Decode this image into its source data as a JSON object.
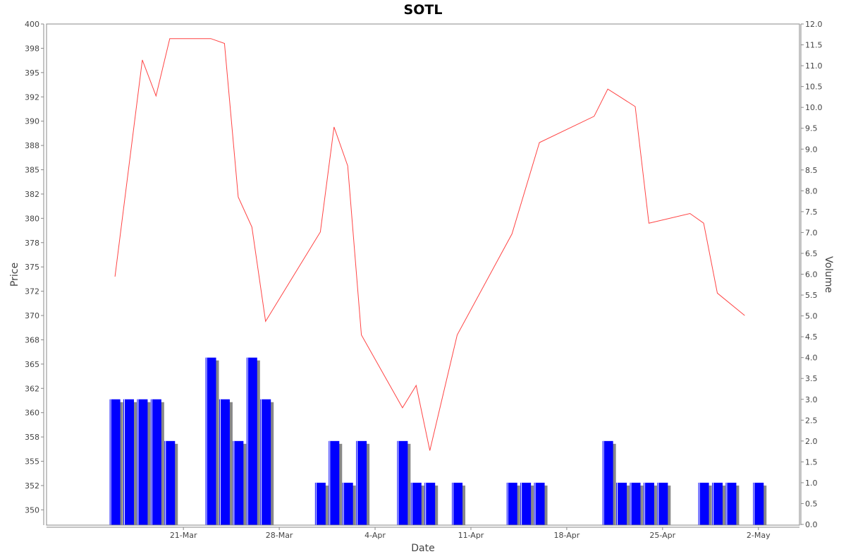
{
  "chart_data": {
    "type": "line+bar",
    "title": "SOTL",
    "xlabel": "Date",
    "ylabel_left": "Price",
    "ylabel_right": "Volume",
    "x_tick_labels": [
      "21-Mar",
      "28-Mar",
      "4-Apr",
      "11-Apr",
      "18-Apr",
      "25-Apr",
      "2-May"
    ],
    "x_tick_days": [
      5,
      12,
      19,
      26,
      33,
      40,
      47
    ],
    "xlim_days": [
      -5,
      50
    ],
    "price_axis": {
      "ylim": [
        348.5,
        400
      ],
      "tick_labels": [
        "350",
        "352",
        "355",
        "358",
        "360",
        "362",
        "365",
        "368",
        "370",
        "372",
        "375",
        "378",
        "380",
        "382",
        "385",
        "388",
        "390",
        "392",
        "395",
        "398",
        "400"
      ],
      "tick_values": [
        350,
        352.5,
        355,
        357.5,
        360,
        362.5,
        365,
        367.5,
        370,
        372.5,
        375,
        377.5,
        380,
        382.5,
        385,
        387.5,
        390,
        392.5,
        395,
        397.5,
        400
      ]
    },
    "volume_axis": {
      "ylim": [
        0,
        12
      ],
      "tick_labels": [
        "0.0",
        "0.5",
        "1.0",
        "1.5",
        "2.0",
        "2.5",
        "3.0",
        "3.5",
        "4.0",
        "4.5",
        "5.0",
        "5.5",
        "6.0",
        "6.5",
        "7.0",
        "7.5",
        "8.0",
        "8.5",
        "9.0",
        "9.5",
        "10.0",
        "10.5",
        "11.0",
        "11.5",
        "12.0"
      ],
      "tick_values": [
        0,
        0.5,
        1,
        1.5,
        2,
        2.5,
        3,
        3.5,
        4,
        4.5,
        5,
        5.5,
        6,
        6.5,
        7,
        7.5,
        8,
        8.5,
        9,
        9.5,
        10,
        10.5,
        11,
        11.5,
        12
      ]
    },
    "series": [
      {
        "kind": "line",
        "color": "#ff4444",
        "points": [
          {
            "day": 0,
            "value": 374.0
          },
          {
            "day": 2,
            "value": 396.3
          },
          {
            "day": 3,
            "value": 392.6
          },
          {
            "day": 4,
            "value": 398.5
          },
          {
            "day": 7,
            "value": 398.5
          },
          {
            "day": 8,
            "value": 398.0
          },
          {
            "day": 9,
            "value": 382.2
          },
          {
            "day": 10,
            "value": 379.1
          },
          {
            "day": 11,
            "value": 369.4
          },
          {
            "day": 15,
            "value": 378.6
          },
          {
            "day": 16,
            "value": 389.4
          },
          {
            "day": 17,
            "value": 385.4
          },
          {
            "day": 18,
            "value": 368.0
          },
          {
            "day": 21,
            "value": 360.5
          },
          {
            "day": 22,
            "value": 362.8
          },
          {
            "day": 23,
            "value": 356.1
          },
          {
            "day": 25,
            "value": 368.0
          },
          {
            "day": 29,
            "value": 378.4
          },
          {
            "day": 31,
            "value": 387.8
          },
          {
            "day": 35,
            "value": 390.5
          },
          {
            "day": 36,
            "value": 393.3
          },
          {
            "day": 37,
            "value": 392.4
          },
          {
            "day": 38,
            "value": 391.5
          },
          {
            "day": 39,
            "value": 379.5
          },
          {
            "day": 42,
            "value": 380.5
          },
          {
            "day": 43,
            "value": 379.5
          },
          {
            "day": 44,
            "value": 372.3
          },
          {
            "day": 46,
            "value": 370.0
          }
        ]
      },
      {
        "kind": "bar",
        "color": "#0000ff",
        "shadow_color": "#888888",
        "points": [
          {
            "day": 0,
            "value": 3
          },
          {
            "day": 1,
            "value": 3
          },
          {
            "day": 2,
            "value": 3
          },
          {
            "day": 3,
            "value": 3
          },
          {
            "day": 4,
            "value": 2
          },
          {
            "day": 7,
            "value": 4
          },
          {
            "day": 8,
            "value": 3
          },
          {
            "day": 9,
            "value": 2
          },
          {
            "day": 10,
            "value": 4
          },
          {
            "day": 11,
            "value": 3
          },
          {
            "day": 15,
            "value": 1
          },
          {
            "day": 16,
            "value": 2
          },
          {
            "day": 17,
            "value": 1
          },
          {
            "day": 18,
            "value": 2
          },
          {
            "day": 21,
            "value": 2
          },
          {
            "day": 22,
            "value": 1
          },
          {
            "day": 23,
            "value": 1
          },
          {
            "day": 25,
            "value": 1
          },
          {
            "day": 29,
            "value": 1
          },
          {
            "day": 30,
            "value": 1
          },
          {
            "day": 31,
            "value": 1
          },
          {
            "day": 36,
            "value": 2
          },
          {
            "day": 37,
            "value": 1
          },
          {
            "day": 38,
            "value": 1
          },
          {
            "day": 39,
            "value": 1
          },
          {
            "day": 40,
            "value": 1
          },
          {
            "day": 43,
            "value": 1
          },
          {
            "day": 44,
            "value": 1
          },
          {
            "day": 45,
            "value": 1
          },
          {
            "day": 47,
            "value": 1
          }
        ]
      }
    ]
  }
}
